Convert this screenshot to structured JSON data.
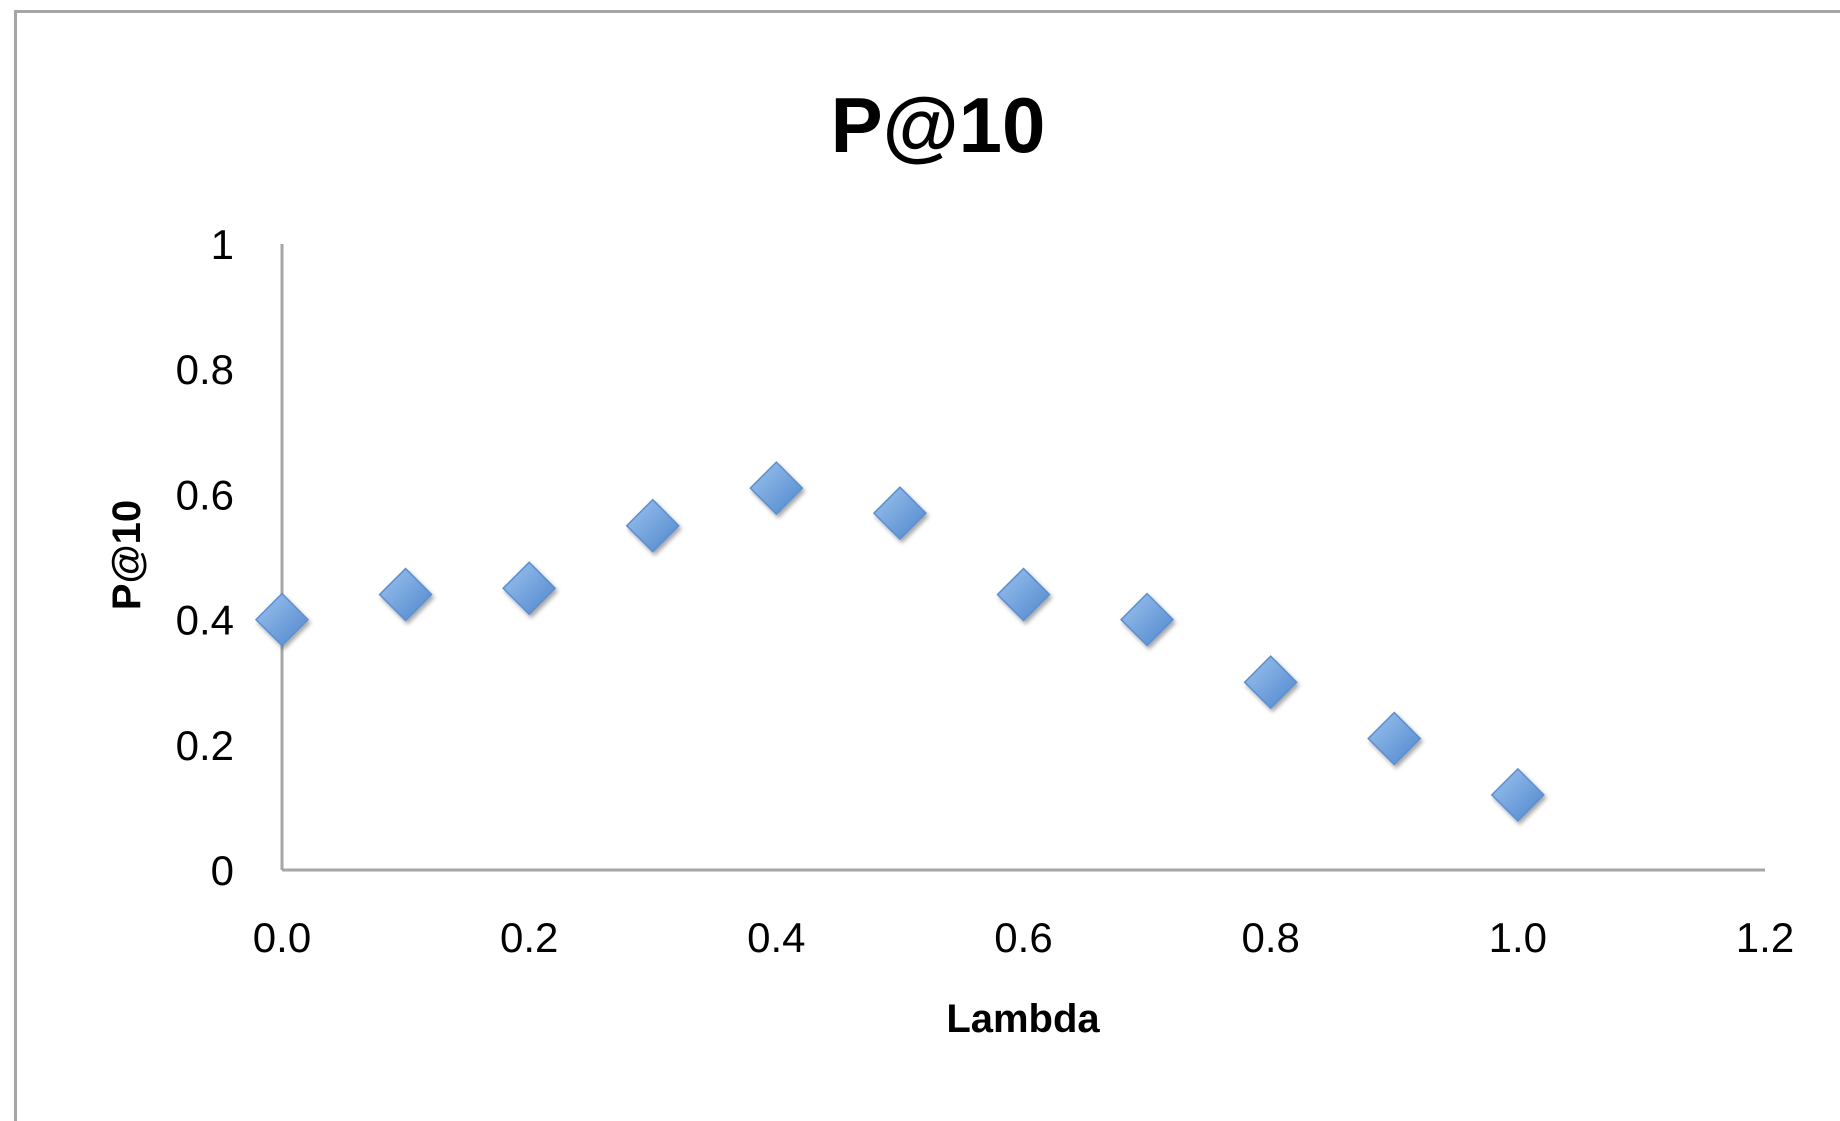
{
  "chart_data": {
    "type": "scatter",
    "title": "P@10",
    "xlabel": "Lambda",
    "ylabel": "P@10",
    "xlim": [
      0,
      1.2
    ],
    "ylim": [
      0,
      1
    ],
    "x_ticks": [
      "0.0",
      "0.2",
      "0.4",
      "0.6",
      "0.8",
      "1.0",
      "1.2"
    ],
    "y_ticks": [
      "0",
      "0.2",
      "0.4",
      "0.6",
      "0.8",
      "1"
    ],
    "grid": false,
    "legend": "none",
    "series": [
      {
        "color": "#6a9fdb",
        "x": [
          0.0,
          0.1,
          0.2,
          0.3,
          0.4,
          0.5,
          0.6,
          0.7,
          0.8,
          0.9,
          1.0
        ],
        "y": [
          0.4,
          0.44,
          0.45,
          0.55,
          0.61,
          0.57,
          0.44,
          0.4,
          0.3,
          0.21,
          0.12
        ]
      }
    ]
  }
}
